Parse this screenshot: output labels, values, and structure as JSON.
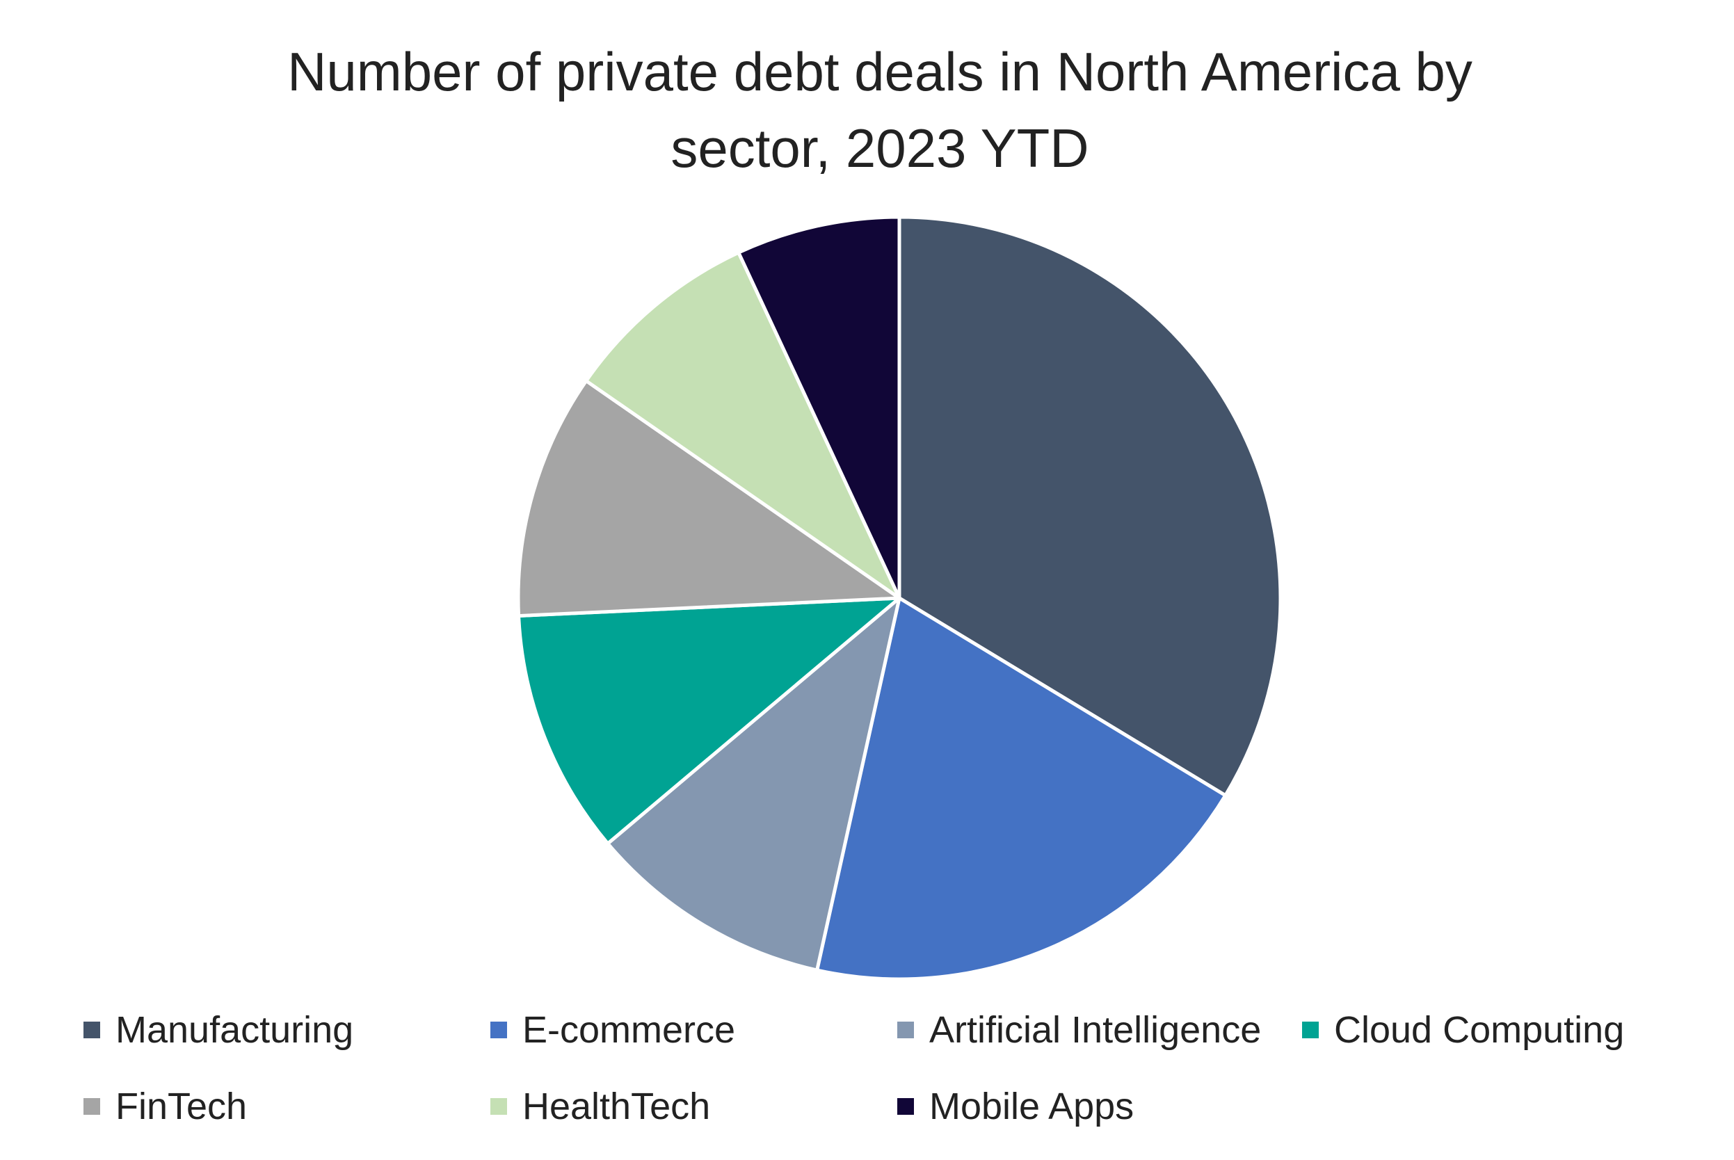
{
  "chart_data": {
    "type": "pie",
    "title": "Number of private debt deals in North America by sector, 2023 YTD",
    "start_angle_deg": 0,
    "direction": "clockwise",
    "slice_stroke_color": "#ffffff",
    "legend_position": "bottom",
    "series": [
      {
        "name": "Manufacturing",
        "value": 34,
        "color": "#44546A"
      },
      {
        "name": "E-commerce",
        "value": 20,
        "color": "#4472C4"
      },
      {
        "name": "Artificial Intelligence",
        "value": 10.5,
        "color": "#8497B0"
      },
      {
        "name": "Cloud Computing",
        "value": 10.5,
        "color": "#00A393"
      },
      {
        "name": "FinTech",
        "value": 10.5,
        "color": "#A5A5A5"
      },
      {
        "name": "HealthTech",
        "value": 8.5,
        "color": "#C5E0B4"
      },
      {
        "name": "Mobile Apps",
        "value": 7,
        "color": "#110637"
      }
    ]
  }
}
